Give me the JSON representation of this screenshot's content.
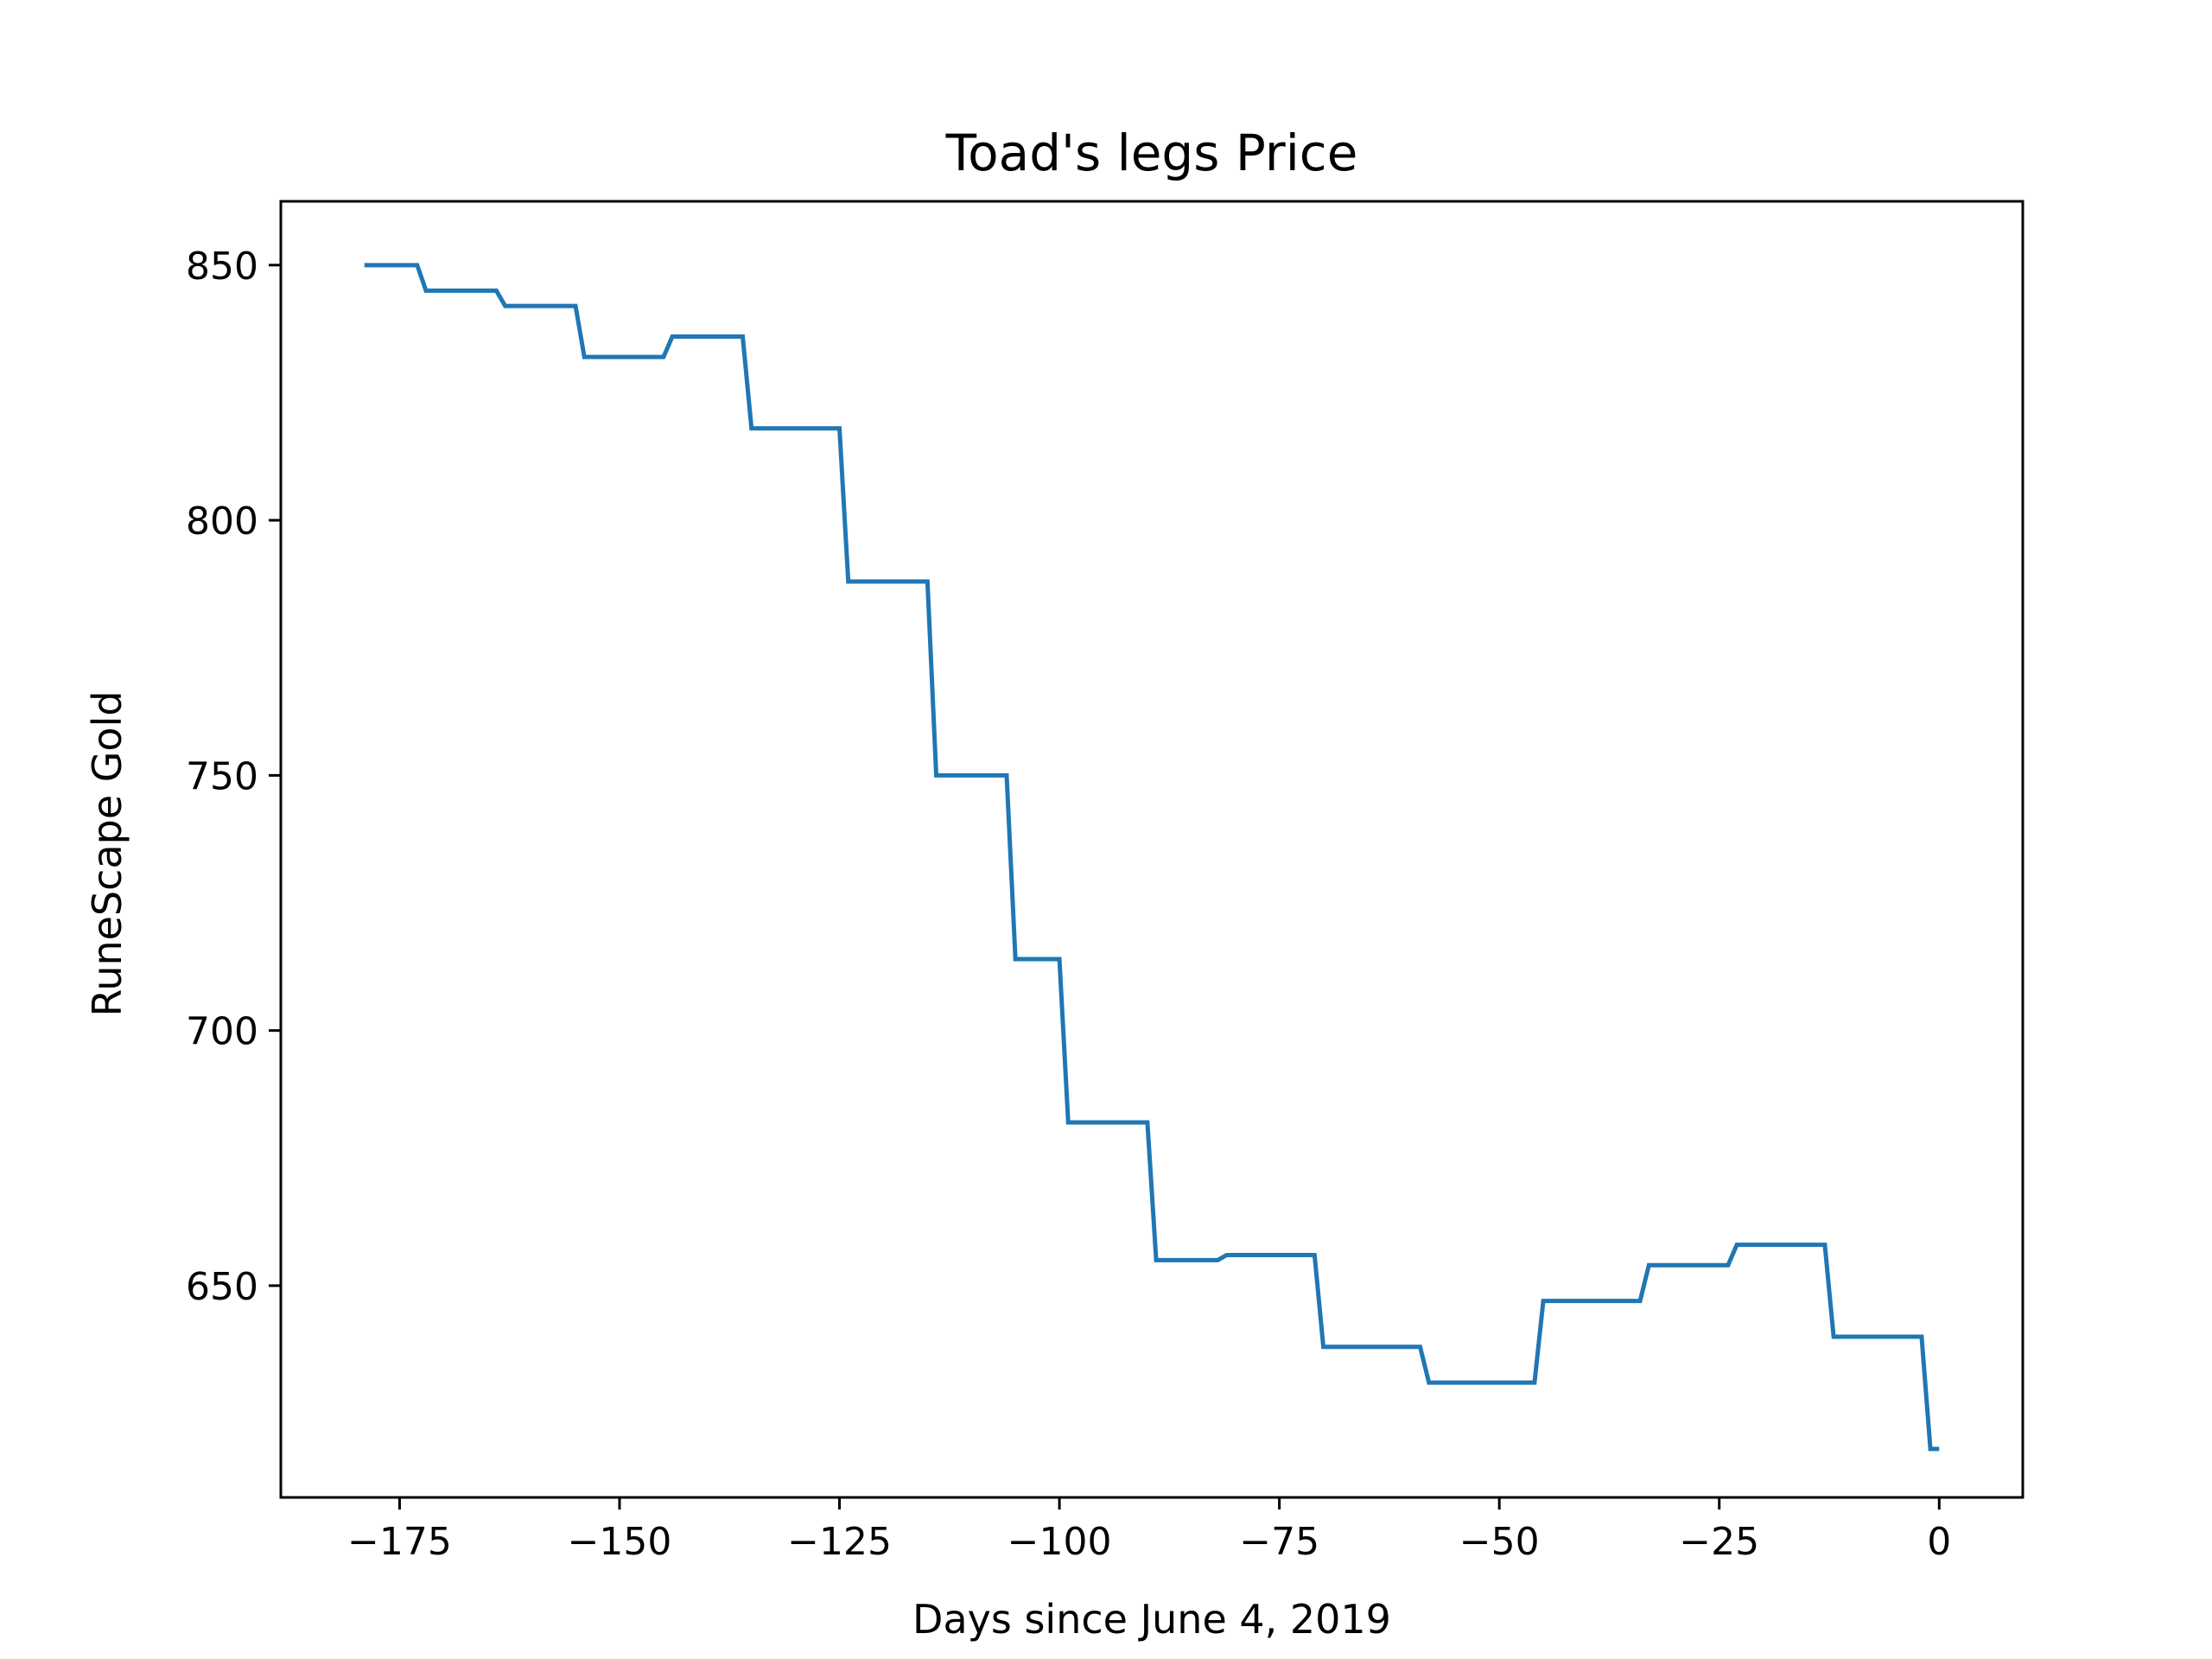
{
  "chart_data": {
    "type": "line",
    "title": "Toad's legs Price",
    "xlabel": "Days since June 4, 2019",
    "ylabel": "RuneScape Gold",
    "xlim": [
      -188.5,
      9.5
    ],
    "ylim": [
      608.5,
      862.5
    ],
    "xticks": [
      -175,
      -150,
      -125,
      -100,
      -75,
      -50,
      -25,
      0
    ],
    "xtick_labels": [
      "−175",
      "−150",
      "−125",
      "−100",
      "−75",
      "−50",
      "−25",
      "0"
    ],
    "yticks": [
      650,
      700,
      750,
      800,
      850
    ],
    "ytick_labels": [
      "650",
      "700",
      "750",
      "800",
      "850"
    ],
    "grid": false,
    "series": [
      {
        "color": "#1f77b4",
        "points": [
          [
            -179,
            850
          ],
          [
            -173,
            850
          ],
          [
            -172,
            845
          ],
          [
            -164,
            845
          ],
          [
            -163,
            842
          ],
          [
            -155,
            842
          ],
          [
            -154,
            832
          ],
          [
            -145,
            832
          ],
          [
            -144,
            836
          ],
          [
            -136,
            836
          ],
          [
            -135,
            818
          ],
          [
            -125,
            818
          ],
          [
            -124,
            788
          ],
          [
            -115,
            788
          ],
          [
            -114,
            750
          ],
          [
            -106,
            750
          ],
          [
            -105,
            714
          ],
          [
            -100,
            714
          ],
          [
            -99,
            682
          ],
          [
            -90,
            682
          ],
          [
            -89,
            655
          ],
          [
            -82,
            655
          ],
          [
            -81,
            656
          ],
          [
            -71,
            656
          ],
          [
            -70,
            638
          ],
          [
            -59,
            638
          ],
          [
            -58,
            631
          ],
          [
            -46,
            631
          ],
          [
            -45,
            647
          ],
          [
            -34,
            647
          ],
          [
            -33,
            654
          ],
          [
            -24,
            654
          ],
          [
            -23,
            658
          ],
          [
            -13,
            658
          ],
          [
            -12,
            640
          ],
          [
            -2,
            640
          ],
          [
            -1,
            618
          ],
          [
            0,
            618
          ]
        ]
      }
    ]
  }
}
